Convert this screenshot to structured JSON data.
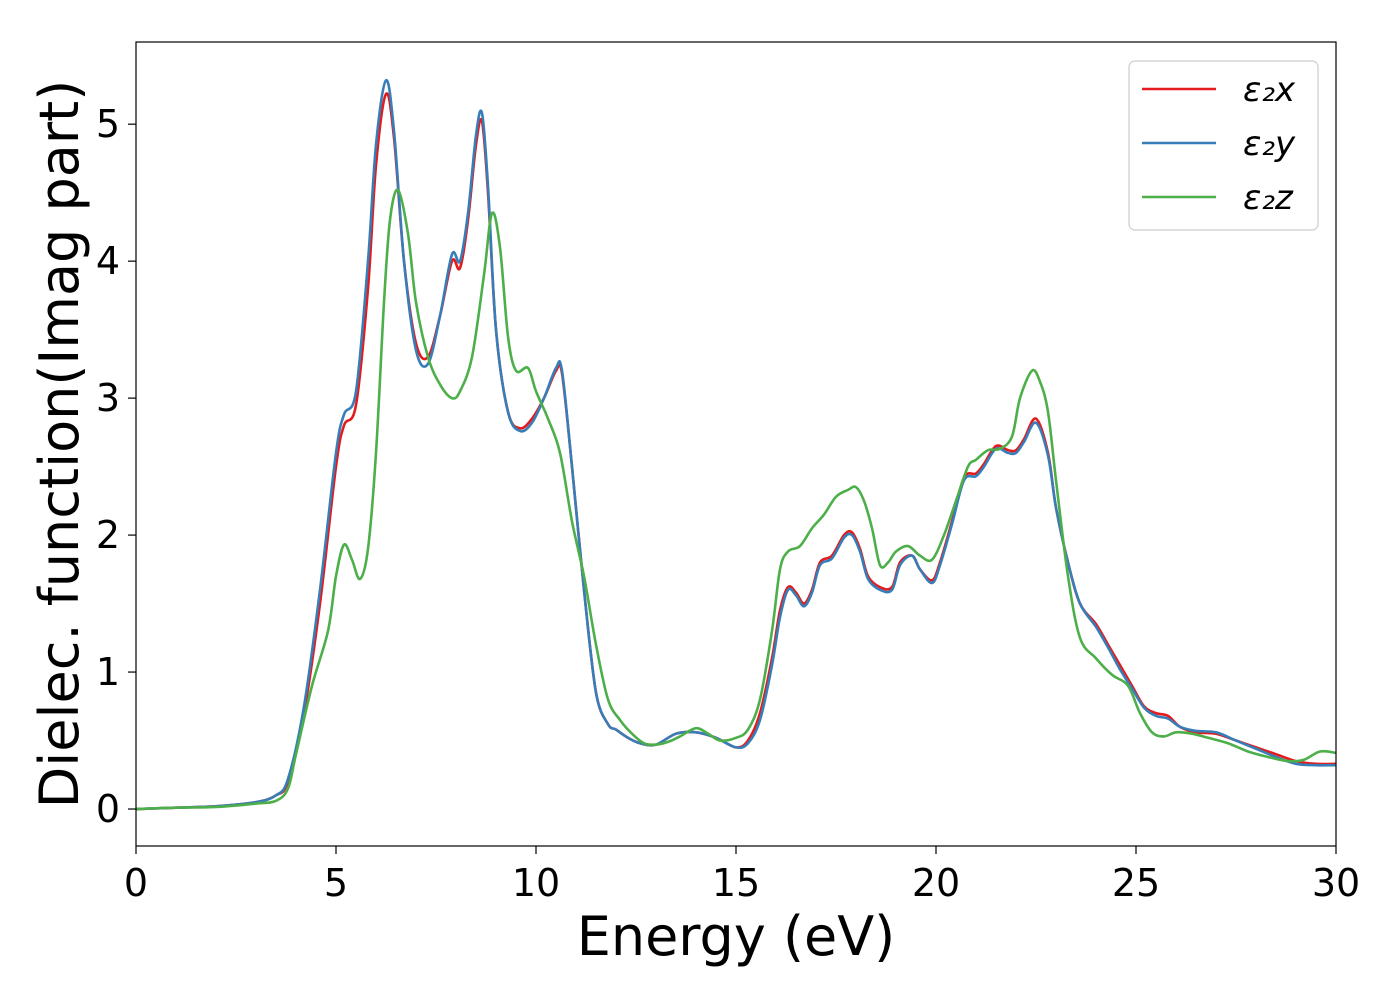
{
  "chart_data": {
    "type": "line",
    "title": "",
    "xlabel": "Energy (eV)",
    "ylabel": "Dielec. function(Imag part)",
    "xlim": [
      0,
      30
    ],
    "ylim": [
      -0.27,
      5.6
    ],
    "xticks": [
      0,
      5,
      10,
      15,
      20,
      25,
      30
    ],
    "xtick_labels": [
      "0",
      "5",
      "10",
      "15",
      "20",
      "25",
      "30"
    ],
    "yticks": [
      0,
      1,
      2,
      3,
      4,
      5
    ],
    "ytick_labels": [
      "0",
      "1",
      "2",
      "3",
      "4",
      "5"
    ],
    "grid": false,
    "legend_position": "top-right",
    "series": [
      {
        "name": "ε₂x",
        "color": "#e41a1c",
        "x": [
          0,
          1,
          2,
          3,
          3.5,
          3.8,
          4.2,
          4.6,
          5.0,
          5.2,
          5.5,
          5.8,
          6.0,
          6.25,
          6.45,
          6.7,
          7.0,
          7.3,
          7.6,
          7.9,
          8.1,
          8.3,
          8.5,
          8.65,
          8.8,
          9.0,
          9.3,
          9.6,
          9.9,
          10.2,
          10.5,
          10.65,
          10.9,
          11.2,
          11.5,
          11.8,
          12.0,
          12.3,
          12.6,
          13.0,
          13.5,
          14.0,
          14.5,
          15.0,
          15.3,
          15.6,
          15.9,
          16.1,
          16.3,
          16.5,
          16.7,
          16.9,
          17.1,
          17.4,
          17.7,
          17.9,
          18.1,
          18.3,
          18.6,
          18.9,
          19.1,
          19.4,
          19.6,
          19.9,
          20.1,
          20.4,
          20.7,
          21.0,
          21.2,
          21.5,
          21.8,
          22.0,
          22.2,
          22.5,
          22.8,
          23.0,
          23.3,
          23.6,
          24.0,
          24.3,
          24.6,
          24.9,
          25.2,
          25.5,
          25.8,
          26.1,
          26.5,
          27.0,
          27.5,
          28.0,
          28.5,
          29.0,
          29.5,
          30.0
        ],
        "y": [
          0.0,
          0.01,
          0.02,
          0.05,
          0.1,
          0.2,
          0.7,
          1.5,
          2.5,
          2.8,
          2.95,
          3.8,
          4.7,
          5.22,
          4.9,
          4.0,
          3.4,
          3.3,
          3.6,
          4.0,
          3.95,
          4.3,
          4.85,
          5.02,
          4.5,
          3.5,
          2.9,
          2.78,
          2.85,
          3.0,
          3.2,
          3.18,
          2.5,
          1.6,
          0.85,
          0.62,
          0.58,
          0.52,
          0.48,
          0.47,
          0.55,
          0.56,
          0.52,
          0.45,
          0.5,
          0.7,
          1.1,
          1.45,
          1.62,
          1.58,
          1.5,
          1.6,
          1.8,
          1.85,
          2.0,
          2.02,
          1.9,
          1.7,
          1.62,
          1.62,
          1.8,
          1.85,
          1.75,
          1.67,
          1.8,
          2.1,
          2.42,
          2.45,
          2.52,
          2.65,
          2.62,
          2.62,
          2.7,
          2.85,
          2.6,
          2.2,
          1.8,
          1.5,
          1.35,
          1.2,
          1.05,
          0.9,
          0.75,
          0.7,
          0.68,
          0.6,
          0.56,
          0.55,
          0.5,
          0.45,
          0.4,
          0.35,
          0.33,
          0.33
        ]
      },
      {
        "name": "ε₂y",
        "color": "#377eb8",
        "x": [
          0,
          1,
          2,
          3,
          3.5,
          3.8,
          4.2,
          4.6,
          5.0,
          5.2,
          5.5,
          5.8,
          6.0,
          6.25,
          6.45,
          6.7,
          7.0,
          7.3,
          7.6,
          7.9,
          8.1,
          8.3,
          8.5,
          8.65,
          8.8,
          9.0,
          9.3,
          9.6,
          9.9,
          10.2,
          10.5,
          10.65,
          10.9,
          11.2,
          11.5,
          11.8,
          12.0,
          12.3,
          12.6,
          13.0,
          13.5,
          14.0,
          14.5,
          15.0,
          15.3,
          15.6,
          15.9,
          16.1,
          16.3,
          16.5,
          16.7,
          16.9,
          17.1,
          17.4,
          17.7,
          17.9,
          18.1,
          18.3,
          18.6,
          18.9,
          19.1,
          19.4,
          19.6,
          19.9,
          20.1,
          20.4,
          20.7,
          21.0,
          21.2,
          21.5,
          21.8,
          22.0,
          22.2,
          22.5,
          22.8,
          23.0,
          23.3,
          23.6,
          24.0,
          24.3,
          24.6,
          24.9,
          25.2,
          25.5,
          25.8,
          26.1,
          26.5,
          27.0,
          27.5,
          28.0,
          28.5,
          29.0,
          29.5,
          30.0
        ],
        "y": [
          0.0,
          0.01,
          0.02,
          0.05,
          0.1,
          0.22,
          0.75,
          1.6,
          2.6,
          2.88,
          3.05,
          4.0,
          4.85,
          5.32,
          4.95,
          4.0,
          3.35,
          3.25,
          3.6,
          4.05,
          4.0,
          4.35,
          4.92,
          5.08,
          4.55,
          3.5,
          2.9,
          2.76,
          2.82,
          3.0,
          3.22,
          3.2,
          2.5,
          1.6,
          0.85,
          0.62,
          0.58,
          0.52,
          0.48,
          0.47,
          0.55,
          0.56,
          0.52,
          0.45,
          0.48,
          0.65,
          1.05,
          1.4,
          1.6,
          1.56,
          1.48,
          1.58,
          1.78,
          1.83,
          1.98,
          2.0,
          1.88,
          1.68,
          1.6,
          1.6,
          1.78,
          1.85,
          1.75,
          1.65,
          1.78,
          2.08,
          2.4,
          2.43,
          2.5,
          2.63,
          2.6,
          2.6,
          2.68,
          2.82,
          2.58,
          2.2,
          1.8,
          1.5,
          1.33,
          1.18,
          1.02,
          0.88,
          0.74,
          0.68,
          0.66,
          0.6,
          0.57,
          0.56,
          0.5,
          0.44,
          0.38,
          0.33,
          0.32,
          0.32
        ]
      },
      {
        "name": "ε₂z",
        "color": "#4daf4a",
        "x": [
          0,
          1,
          2,
          3,
          3.5,
          3.8,
          4.0,
          4.4,
          4.8,
          5.0,
          5.2,
          5.4,
          5.6,
          5.8,
          6.0,
          6.2,
          6.35,
          6.55,
          6.8,
          7.0,
          7.3,
          7.6,
          7.9,
          8.1,
          8.4,
          8.7,
          8.9,
          9.1,
          9.3,
          9.5,
          9.8,
          10.0,
          10.3,
          10.6,
          10.9,
          11.2,
          11.5,
          11.8,
          12.1,
          12.4,
          12.7,
          13.0,
          13.3,
          13.6,
          14.0,
          14.3,
          14.6,
          15.0,
          15.3,
          15.6,
          15.9,
          16.1,
          16.3,
          16.6,
          16.9,
          17.2,
          17.5,
          17.8,
          18.0,
          18.2,
          18.4,
          18.6,
          18.8,
          19.0,
          19.3,
          19.6,
          19.9,
          20.2,
          20.5,
          20.8,
          21.0,
          21.3,
          21.6,
          21.9,
          22.1,
          22.4,
          22.6,
          22.8,
          23.0,
          23.3,
          23.6,
          24.0,
          24.4,
          24.8,
          25.1,
          25.4,
          25.7,
          26.0,
          26.4,
          26.8,
          27.3,
          27.8,
          28.3,
          28.8,
          29.2,
          29.6,
          30.0
        ],
        "y": [
          0.0,
          0.01,
          0.015,
          0.04,
          0.06,
          0.15,
          0.4,
          0.9,
          1.3,
          1.7,
          1.93,
          1.82,
          1.68,
          1.9,
          2.6,
          3.7,
          4.3,
          4.52,
          4.2,
          3.7,
          3.3,
          3.1,
          3.0,
          3.05,
          3.3,
          3.9,
          4.35,
          4.1,
          3.45,
          3.2,
          3.22,
          3.05,
          2.85,
          2.6,
          2.1,
          1.7,
          1.2,
          0.8,
          0.65,
          0.55,
          0.48,
          0.47,
          0.49,
          0.53,
          0.59,
          0.55,
          0.5,
          0.52,
          0.58,
          0.8,
          1.3,
          1.75,
          1.88,
          1.92,
          2.05,
          2.15,
          2.28,
          2.33,
          2.35,
          2.25,
          2.05,
          1.78,
          1.8,
          1.88,
          1.92,
          1.85,
          1.82,
          2.0,
          2.25,
          2.5,
          2.55,
          2.62,
          2.63,
          2.72,
          3.0,
          3.2,
          3.12,
          2.9,
          2.4,
          1.7,
          1.25,
          1.1,
          0.98,
          0.9,
          0.7,
          0.56,
          0.53,
          0.56,
          0.55,
          0.52,
          0.48,
          0.42,
          0.38,
          0.35,
          0.36,
          0.42,
          0.41
        ]
      }
    ]
  }
}
